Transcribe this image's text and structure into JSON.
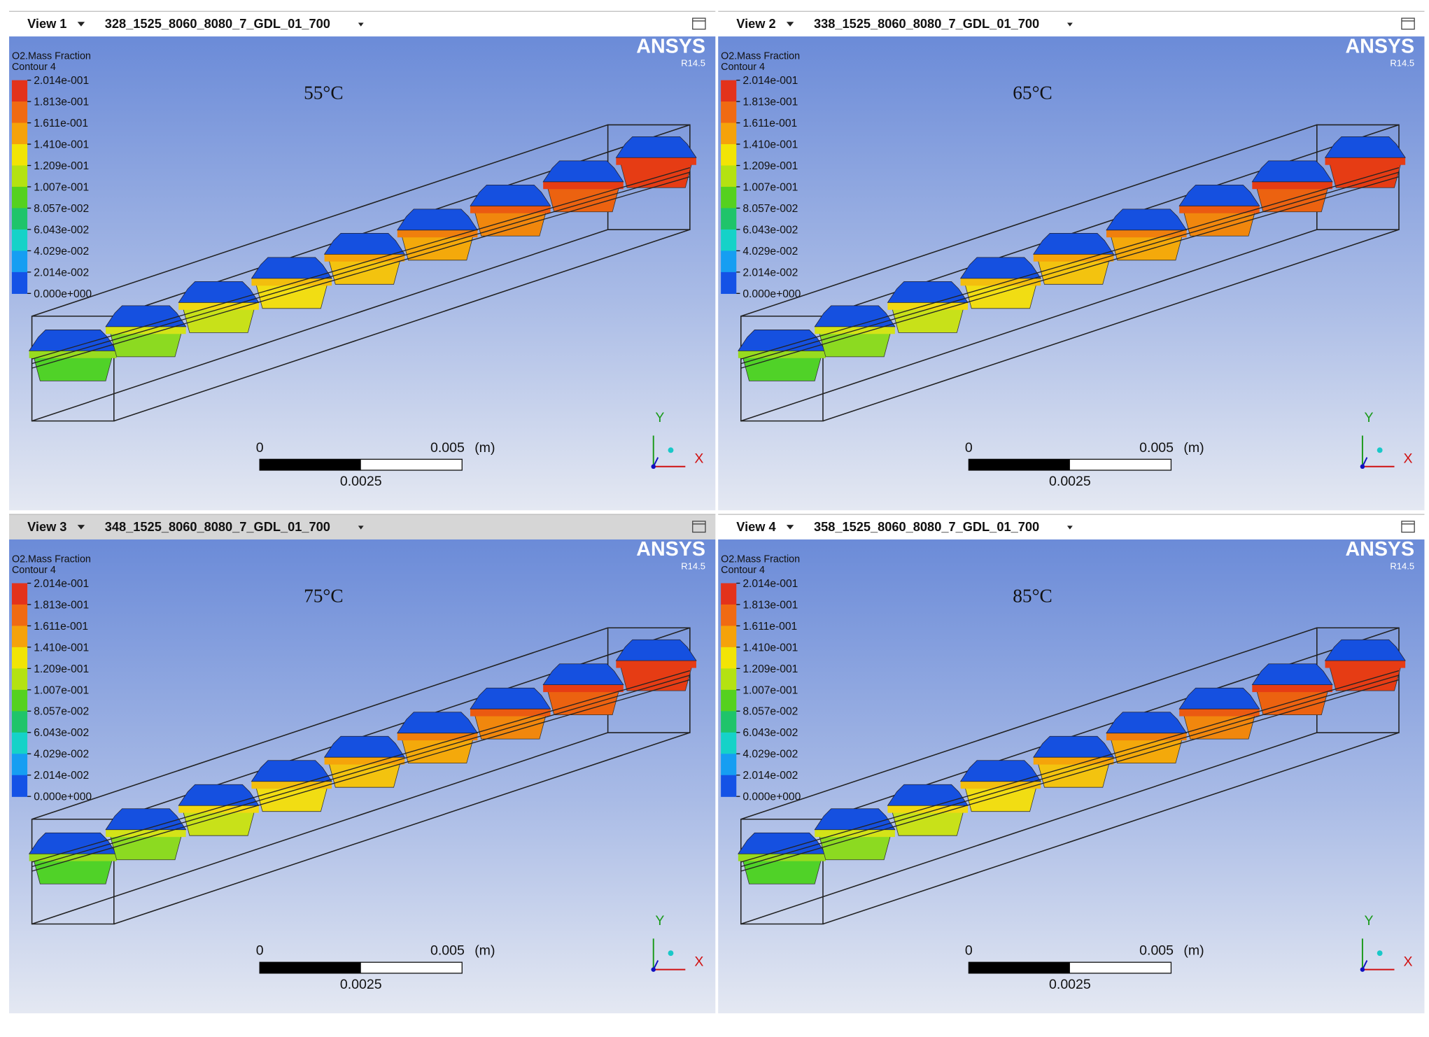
{
  "views": [
    {
      "tab": "View 1",
      "file": "328_1525_8060_8080_7_GDL_01_700",
      "legend": {
        "title": "O2.Mass Fraction",
        "subtitle": "Contour 4",
        "labels": [
          "2.014e-001",
          "1.813e-001",
          "1.611e-001",
          "1.410e-001",
          "1.209e-001",
          "1.007e-001",
          "8.057e-002",
          "6.043e-002",
          "4.029e-002",
          "2.014e-002",
          "0.000e+000"
        ]
      },
      "temperature": "55°C",
      "brand": "ANSYS",
      "release": "R14.5",
      "scale": {
        "start": "0",
        "end": "0.005",
        "unit": "(m)",
        "mid": "0.0025"
      },
      "axes": {
        "y": "Y",
        "x": "X"
      }
    },
    {
      "tab": "View 2",
      "file": "338_1525_8060_8080_7_GDL_01_700",
      "legend": {
        "title": "O2.Mass Fraction",
        "subtitle": "Contour 4",
        "labels": [
          "2.014e-001",
          "1.813e-001",
          "1.611e-001",
          "1.410e-001",
          "1.209e-001",
          "1.007e-001",
          "8.057e-002",
          "6.043e-002",
          "4.029e-002",
          "2.014e-002",
          "0.000e+000"
        ]
      },
      "temperature": "65°C",
      "brand": "ANSYS",
      "release": "R14.5",
      "scale": {
        "start": "0",
        "end": "0.005",
        "unit": "(m)",
        "mid": "0.0025"
      },
      "axes": {
        "y": "Y",
        "x": "X"
      }
    },
    {
      "tab": "View 3",
      "file": "348_1525_8060_8080_7_GDL_01_700",
      "legend": {
        "title": "O2.Mass Fraction",
        "subtitle": "Contour 4",
        "labels": [
          "2.014e-001",
          "1.813e-001",
          "1.611e-001",
          "1.410e-001",
          "1.209e-001",
          "1.007e-001",
          "8.057e-002",
          "6.043e-002",
          "4.029e-002",
          "2.014e-002",
          "0.000e+000"
        ]
      },
      "temperature": "75°C",
      "brand": "ANSYS",
      "release": "R14.5",
      "scale": {
        "start": "0",
        "end": "0.005",
        "unit": "(m)",
        "mid": "0.0025"
      },
      "axes": {
        "y": "Y",
        "x": "X"
      }
    },
    {
      "tab": "View 4",
      "file": "358_1525_8060_8080_7_GDL_01_700",
      "legend": {
        "title": "O2.Mass Fraction",
        "subtitle": "Contour 4",
        "labels": [
          "2.014e-001",
          "1.813e-001",
          "1.611e-001",
          "1.410e-001",
          "1.209e-001",
          "1.007e-001",
          "8.057e-002",
          "6.043e-002",
          "4.029e-002",
          "2.014e-002",
          "0.000e+000"
        ]
      },
      "temperature": "85°C",
      "brand": "ANSYS",
      "release": "R14.5",
      "scale": {
        "start": "0",
        "end": "0.005",
        "unit": "(m)",
        "mid": "0.0025"
      },
      "axes": {
        "y": "Y",
        "x": "X"
      }
    }
  ]
}
